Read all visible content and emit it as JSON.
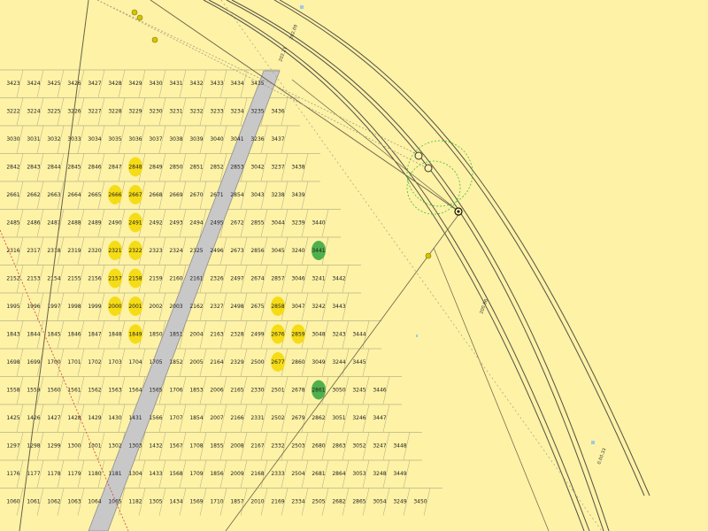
{
  "map": {
    "background": "#fdf2a6",
    "colors": {
      "grid_line": "#9a9478",
      "walkway": "#c8c8c8",
      "walkway_edge": "#8e8e8e",
      "track": "#555044",
      "reserved_lot": "#f5dc16",
      "sold_lot": "#4fb04c",
      "circle_guide": "#3fbf3a",
      "dotted_line": "#a89e80",
      "red_line": "#d04040"
    },
    "track_labels": [
      "202.09",
      "202.21",
      "200.86",
      "0.00.33"
    ],
    "rows": [
      [
        "3423",
        "3424",
        "3425",
        "3426",
        "3427",
        "3428",
        "3429",
        "3430",
        "3431",
        "3432",
        "3433",
        "3434",
        "3435"
      ],
      [
        "3222",
        "3224",
        "3225",
        "3226",
        "3227",
        "3228",
        "3229",
        "3230",
        "3231",
        "3232",
        "3233",
        "3234",
        "3235",
        "3436"
      ],
      [
        "3030",
        "3031",
        "3032",
        "3033",
        "3034",
        "3035",
        "3036",
        "3037",
        "3038",
        "3039",
        "3040",
        "3041",
        "3236",
        "3437"
      ],
      [
        "2842",
        "2843",
        "2844",
        "2845",
        "2846",
        "2847",
        "2848",
        "2849",
        "2850",
        "2851",
        "2852",
        "2853",
        "3042",
        "3237",
        "3438"
      ],
      [
        "2661",
        "2662",
        "2663",
        "2664",
        "2665",
        "2666",
        "2667",
        "2668",
        "2669",
        "2670",
        "2671",
        "2854",
        "3043",
        "3238",
        "3439"
      ],
      [
        "2485",
        "2486",
        "2487",
        "2488",
        "2489",
        "2490",
        "2491",
        "2492",
        "2493",
        "2494",
        "2495",
        "2672",
        "2855",
        "3044",
        "3239",
        "3440"
      ],
      [
        "2316",
        "2317",
        "2318",
        "2319",
        "2320",
        "2321",
        "2322",
        "2323",
        "2324",
        "2325",
        "2496",
        "2673",
        "2856",
        "3045",
        "3240",
        "3441"
      ],
      [
        "2152",
        "2153",
        "2154",
        "2155",
        "2156",
        "2157",
        "2158",
        "2159",
        "2160",
        "2161",
        "2326",
        "2497",
        "2674",
        "2857",
        "3046",
        "3241",
        "3442"
      ],
      [
        "1995",
        "1996",
        "1997",
        "1998",
        "1999",
        "2000",
        "2001",
        "2002",
        "2003",
        "2162",
        "2327",
        "2498",
        "2675",
        "2858",
        "3047",
        "3242",
        "3443"
      ],
      [
        "1843",
        "1844",
        "1845",
        "1846",
        "1847",
        "1848",
        "1849",
        "1850",
        "1851",
        "2004",
        "2163",
        "2328",
        "2499",
        "2676",
        "2859",
        "3048",
        "3243",
        "3444"
      ],
      [
        "1698",
        "1699",
        "1700",
        "1701",
        "1702",
        "1703",
        "1704",
        "1705",
        "1852",
        "2005",
        "2164",
        "2329",
        "2500",
        "2677",
        "2860",
        "3049",
        "3244",
        "3445"
      ],
      [
        "1558",
        "1559",
        "1560",
        "1561",
        "1562",
        "1563",
        "1564",
        "1565",
        "1706",
        "1853",
        "2006",
        "2165",
        "2330",
        "2501",
        "2678",
        "2861",
        "3050",
        "3245",
        "3446"
      ],
      [
        "1425",
        "1426",
        "1427",
        "1428",
        "1429",
        "1430",
        "1431",
        "1566",
        "1707",
        "1854",
        "2007",
        "2166",
        "2331",
        "2502",
        "2679",
        "2862",
        "3051",
        "3246",
        "3447"
      ],
      [
        "1297",
        "1298",
        "1299",
        "1300",
        "1301",
        "1302",
        "1303",
        "1432",
        "1567",
        "1708",
        "1855",
        "2008",
        "2167",
        "2332",
        "2503",
        "2680",
        "2863",
        "3052",
        "3247",
        "3448"
      ],
      [
        "1176",
        "1177",
        "1178",
        "1179",
        "1180",
        "1181",
        "1304",
        "1433",
        "1568",
        "1709",
        "1856",
        "2009",
        "2168",
        "2333",
        "2504",
        "2681",
        "2864",
        "3053",
        "3248",
        "3449"
      ],
      [
        "1060",
        "1061",
        "1062",
        "1063",
        "1064",
        "1065",
        "1182",
        "1305",
        "1434",
        "1569",
        "1710",
        "1857",
        "2010",
        "2169",
        "2334",
        "2505",
        "2682",
        "2865",
        "3054",
        "3249",
        "3450"
      ]
    ],
    "reserved_lots": [
      "2848",
      "2666",
      "2667",
      "2491",
      "2321",
      "2322",
      "2157",
      "2158",
      "2000",
      "2001",
      "1849",
      "2858",
      "2676",
      "2859",
      "2677"
    ],
    "sold_lots": [
      "3441",
      "2861"
    ]
  }
}
